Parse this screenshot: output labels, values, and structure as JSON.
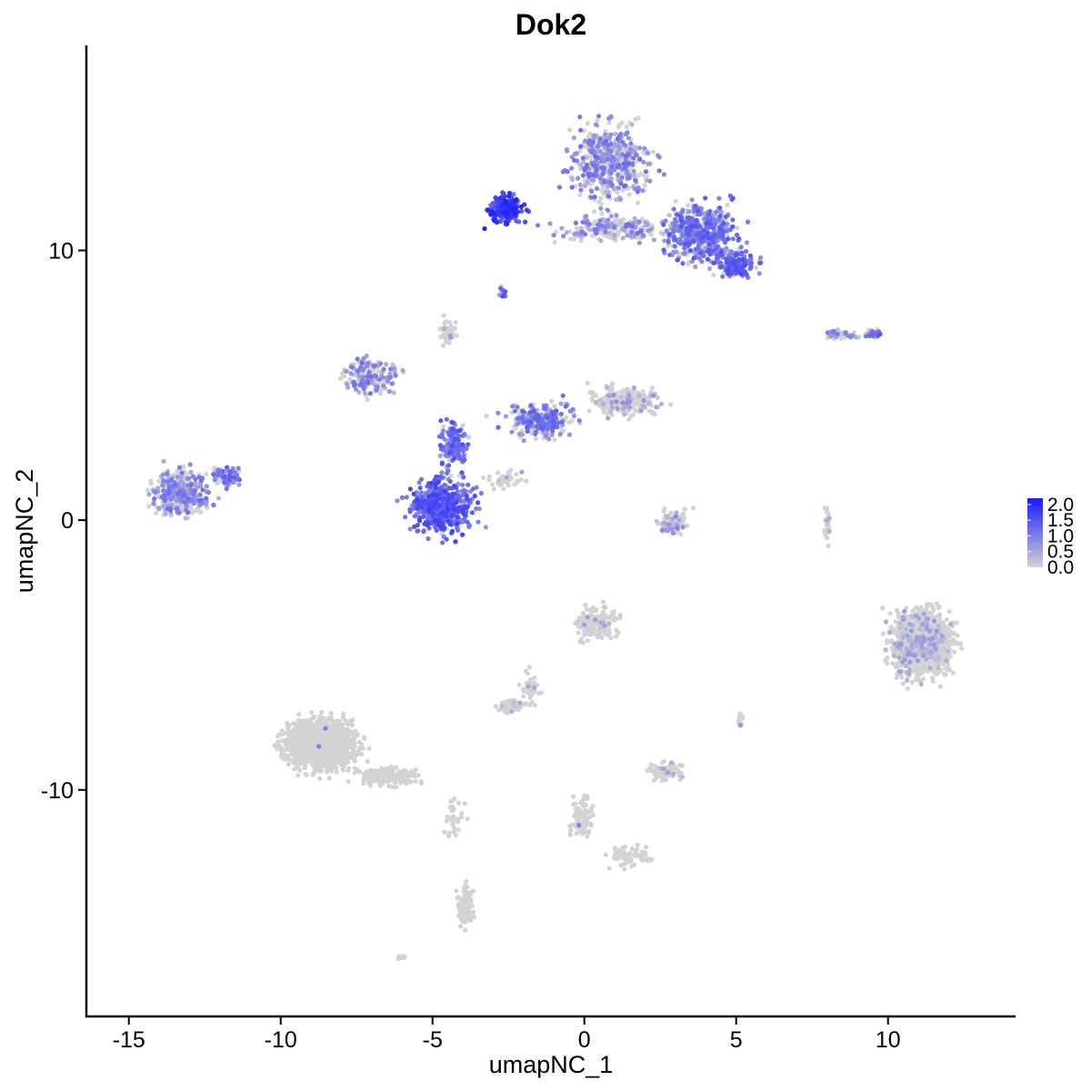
{
  "chart_data": {
    "type": "scatter",
    "title": "Dok2",
    "xlabel": "umapNC_1",
    "ylabel": "umapNC_2",
    "xlim": [
      -16.4,
      14.2
    ],
    "ylim": [
      -18.4,
      17.6
    ],
    "x_ticks": [
      -15,
      -10,
      -5,
      0,
      5,
      10
    ],
    "x_tick_labels": [
      "-15",
      "-10",
      "-5",
      "0",
      "5",
      "10"
    ],
    "y_ticks": [
      -10,
      0,
      10
    ],
    "y_tick_labels": [
      "-10",
      "0",
      "10"
    ],
    "grid": false,
    "legend": {
      "placement": "right",
      "title": "",
      "ticks": [
        2.0,
        1.5,
        1.0,
        0.5,
        0.0
      ],
      "tick_labels": [
        "2.0",
        "1.5",
        "1.0",
        "0.5",
        "0.0"
      ],
      "range": [
        0.0,
        2.2
      ],
      "low_color": "#d3d3d3",
      "high_color": "#1a1aff"
    },
    "series": [
      {
        "note_fields": [
          "cx",
          "cy",
          "spread_x",
          "spread_y",
          "count",
          "mean_expression"
        ],
        "clusters": [
          [
            0.8,
            13.3,
            1.6,
            1.9,
            520,
            0.75
          ],
          [
            1.0,
            10.8,
            2.2,
            0.6,
            200,
            0.7
          ],
          [
            -2.6,
            11.5,
            0.7,
            0.6,
            230,
            1.6
          ],
          [
            3.8,
            10.7,
            1.4,
            1.3,
            500,
            1.0
          ],
          [
            5.0,
            9.5,
            0.9,
            0.6,
            200,
            1.1
          ],
          [
            -2.7,
            8.5,
            0.15,
            0.3,
            14,
            1.1
          ],
          [
            -13.3,
            1.0,
            1.2,
            1.0,
            360,
            0.7
          ],
          [
            -11.8,
            1.6,
            0.6,
            0.5,
            80,
            0.9
          ],
          [
            -4.7,
            0.5,
            1.3,
            1.2,
            500,
            1.25
          ],
          [
            -4.3,
            2.8,
            0.6,
            1.2,
            150,
            1.1
          ],
          [
            -7.0,
            5.3,
            1.1,
            0.8,
            180,
            0.7
          ],
          [
            -1.5,
            3.7,
            1.4,
            0.8,
            240,
            0.9
          ],
          [
            1.3,
            4.4,
            1.4,
            0.6,
            260,
            0.3
          ],
          [
            -4.5,
            7.0,
            0.4,
            0.8,
            50,
            0.15
          ],
          [
            -2.6,
            1.5,
            0.8,
            0.4,
            40,
            0.1
          ],
          [
            8.5,
            6.9,
            0.9,
            0.2,
            40,
            0.6
          ],
          [
            9.5,
            6.9,
            0.3,
            0.2,
            40,
            1.0
          ],
          [
            2.9,
            -0.1,
            0.7,
            0.6,
            80,
            0.45
          ],
          [
            8.0,
            -0.2,
            0.2,
            0.8,
            30,
            0.2
          ],
          [
            11.1,
            -4.6,
            1.2,
            1.4,
            1200,
            0.2
          ],
          [
            0.4,
            -3.8,
            0.8,
            0.8,
            180,
            0.15
          ],
          [
            -1.8,
            -6.2,
            0.4,
            0.9,
            40,
            0.1
          ],
          [
            -2.5,
            -6.9,
            0.5,
            0.3,
            60,
            0.15
          ],
          [
            2.6,
            -9.3,
            0.6,
            0.4,
            100,
            0.15
          ],
          [
            -8.7,
            -8.3,
            1.4,
            1.1,
            1500,
            0.02
          ],
          [
            -6.5,
            -9.5,
            1.2,
            0.4,
            200,
            0.02
          ],
          [
            -3.9,
            -14.3,
            0.3,
            0.9,
            120,
            0.02
          ],
          [
            -4.3,
            -11.0,
            0.4,
            1.0,
            30,
            0.02
          ],
          [
            -0.1,
            -11.0,
            0.5,
            1.0,
            80,
            0.02
          ],
          [
            1.5,
            -12.5,
            0.9,
            0.5,
            60,
            0.02
          ],
          [
            5.1,
            -7.4,
            0.15,
            0.3,
            15,
            0.3
          ],
          [
            -6.0,
            -16.2,
            0.2,
            0.1,
            8,
            0.0
          ]
        ]
      }
    ]
  }
}
